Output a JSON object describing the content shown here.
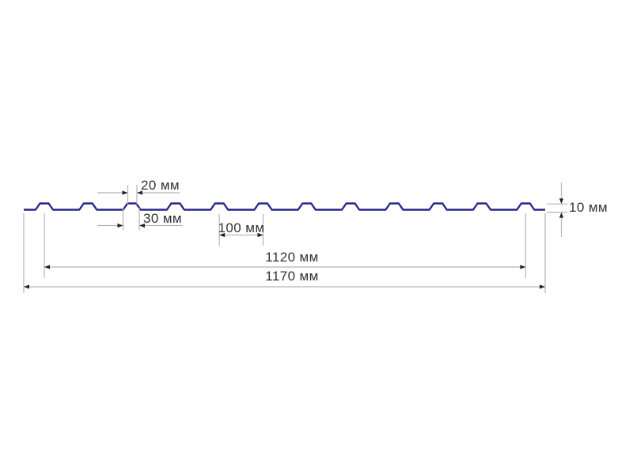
{
  "diagram": {
    "type": "profiled-sheet-cross-section",
    "unit": "мм",
    "colors": {
      "background": "#ffffff",
      "profile_line": "#26268a",
      "dimension_line": "#b5b5b5",
      "arrowhead": "#222222",
      "label_text": "#333333"
    },
    "profile": {
      "rib_count": 12
    },
    "dimensions": {
      "rib_top_width": {
        "label": "20 мм",
        "value": 20,
        "unit": "мм"
      },
      "rib_base_width": {
        "label": "30 мм",
        "value": 30,
        "unit": "мм"
      },
      "rib_pitch": {
        "label": "100 мм",
        "value": 100,
        "unit": "мм"
      },
      "useful_width": {
        "label": "1120 мм",
        "value": 1120,
        "unit": "мм"
      },
      "overall_width": {
        "label": "1170 мм",
        "value": 1170,
        "unit": "мм"
      },
      "profile_height": {
        "label": "10 мм",
        "value": 10,
        "unit": "мм"
      }
    }
  }
}
